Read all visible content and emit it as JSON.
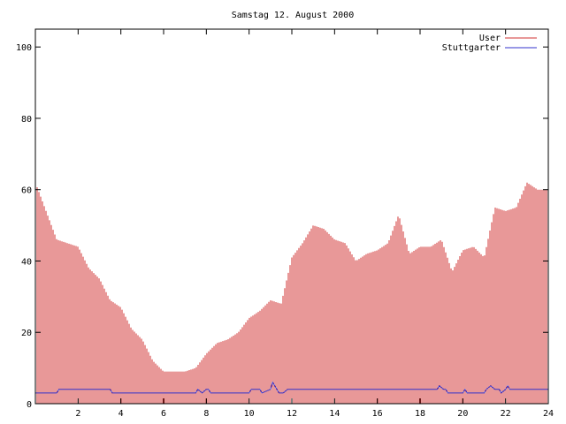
{
  "chart_data": {
    "type": "bar",
    "title": "Samstag 12. August 2000",
    "xlabel": "",
    "ylabel": "",
    "xlim": [
      0,
      24
    ],
    "ylim": [
      0,
      105
    ],
    "x_ticks": [
      2,
      4,
      6,
      8,
      10,
      12,
      14,
      16,
      18,
      20,
      22,
      24
    ],
    "y_ticks": [
      0,
      20,
      40,
      60,
      80,
      100
    ],
    "legend_position": "top-right",
    "grid": false,
    "series": [
      {
        "name": "User",
        "style": "impulses",
        "color": "#d03030",
        "x": [
          0,
          0.5,
          1,
          1.5,
          2,
          2.5,
          3,
          3.5,
          4,
          4.5,
          5,
          5.5,
          6,
          6.5,
          7,
          7.5,
          8,
          8.5,
          9,
          9.5,
          10,
          10.5,
          11,
          11.5,
          12,
          12.5,
          13,
          13.5,
          14,
          14.5,
          15,
          15.5,
          16,
          16.5,
          17,
          17.5,
          18,
          18.5,
          19,
          19.5,
          20,
          20.5,
          21,
          21.5,
          22,
          22.5,
          23,
          23.5,
          24
        ],
        "y": [
          62,
          54,
          46,
          45,
          44,
          38,
          35,
          29,
          27,
          21,
          18,
          12,
          9,
          9,
          9,
          10,
          14,
          17,
          18,
          20,
          24,
          26,
          29,
          28,
          41,
          45,
          50,
          49,
          46,
          45,
          40,
          42,
          43,
          45,
          53,
          42,
          44,
          44,
          46,
          37,
          43,
          44,
          41,
          55,
          54,
          55,
          62,
          60,
          60
        ]
      },
      {
        "name": "Stuttgarter",
        "style": "line",
        "color": "#3333cc",
        "x": [
          0,
          1,
          1.1,
          3.5,
          3.6,
          7.5,
          7.6,
          7.8,
          8,
          8.1,
          8.2,
          9,
          10,
          10.1,
          10.5,
          10.6,
          11,
          11.1,
          11.2,
          11.4,
          11.6,
          11.8,
          12,
          18.8,
          18.9,
          19.1,
          19.2,
          19.3,
          20,
          20.1,
          20.2,
          21,
          21.1,
          21.3,
          21.5,
          21.7,
          21.8,
          22,
          22.1,
          22.2,
          24
        ],
        "y": [
          3,
          3,
          4,
          4,
          3,
          3,
          4,
          3,
          4,
          4,
          3,
          3,
          3,
          4,
          4,
          3,
          4,
          6,
          5,
          3,
          3,
          4,
          4,
          4,
          5,
          4,
          4,
          3,
          3,
          4,
          3,
          3,
          4,
          5,
          4,
          4,
          3,
          4,
          5,
          4,
          4
        ]
      }
    ]
  }
}
